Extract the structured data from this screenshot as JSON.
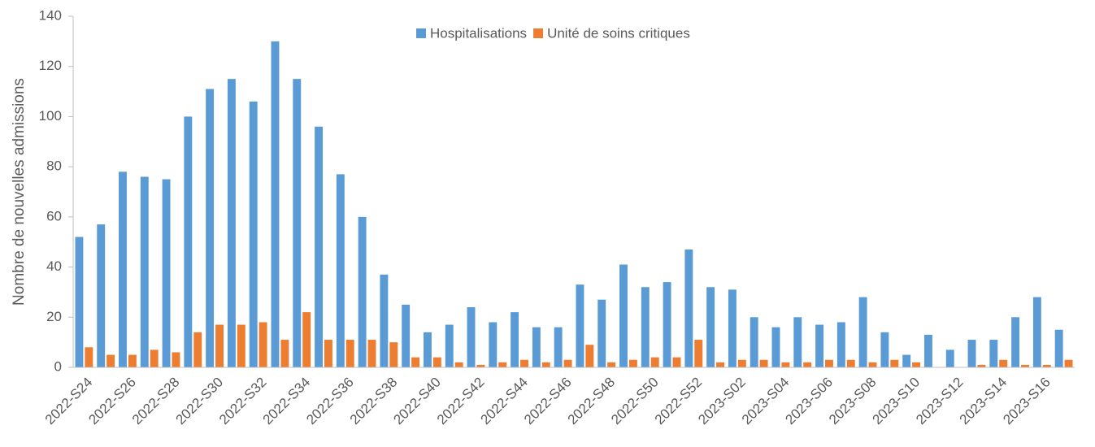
{
  "chart_data": {
    "type": "bar",
    "y_label": "Nombre de nouvelles admissions",
    "categories": [
      "2022-S24",
      null,
      "2022-S26",
      null,
      "2022-S28",
      null,
      "2022-S30",
      null,
      "2022-S32",
      null,
      "2022-S34",
      null,
      "2022-S36",
      null,
      "2022-S38",
      null,
      "2022-S40",
      null,
      "2022-S42",
      null,
      "2022-S44",
      null,
      "2022-S46",
      null,
      "2022-S48",
      null,
      "2022-S50",
      null,
      "2022-S52",
      null,
      "2023-S02",
      null,
      "2023-S04",
      null,
      "2023-S06",
      null,
      "2023-S08",
      null,
      "2023-S10",
      null,
      "2023-S12",
      null,
      "2023-S14",
      null,
      "2023-S16",
      null
    ],
    "series": [
      {
        "name": "Hospitalisations",
        "color": "#5b9bd5",
        "values": [
          52,
          57,
          78,
          76,
          75,
          100,
          111,
          115,
          106,
          130,
          115,
          96,
          77,
          60,
          37,
          25,
          14,
          17,
          24,
          18,
          22,
          16,
          16,
          33,
          27,
          41,
          32,
          34,
          47,
          32,
          31,
          20,
          16,
          20,
          17,
          18,
          28,
          14,
          5,
          13,
          7,
          11,
          11,
          20,
          28,
          15
        ]
      },
      {
        "name": "Unité de soins critiques",
        "color": "#ed7d31",
        "values": [
          8,
          5,
          5,
          7,
          6,
          14,
          17,
          17,
          18,
          11,
          22,
          11,
          11,
          11,
          10,
          4,
          4,
          2,
          1,
          2,
          3,
          2,
          3,
          9,
          2,
          3,
          4,
          4,
          11,
          2,
          3,
          3,
          2,
          2,
          3,
          3,
          2,
          3,
          2,
          0,
          0,
          1,
          3,
          1,
          1,
          3
        ]
      }
    ],
    "ylim": [
      0,
      140
    ],
    "yticks": [
      0,
      20,
      40,
      60,
      80,
      100,
      120,
      140
    ],
    "grid": false,
    "legend": "top"
  }
}
